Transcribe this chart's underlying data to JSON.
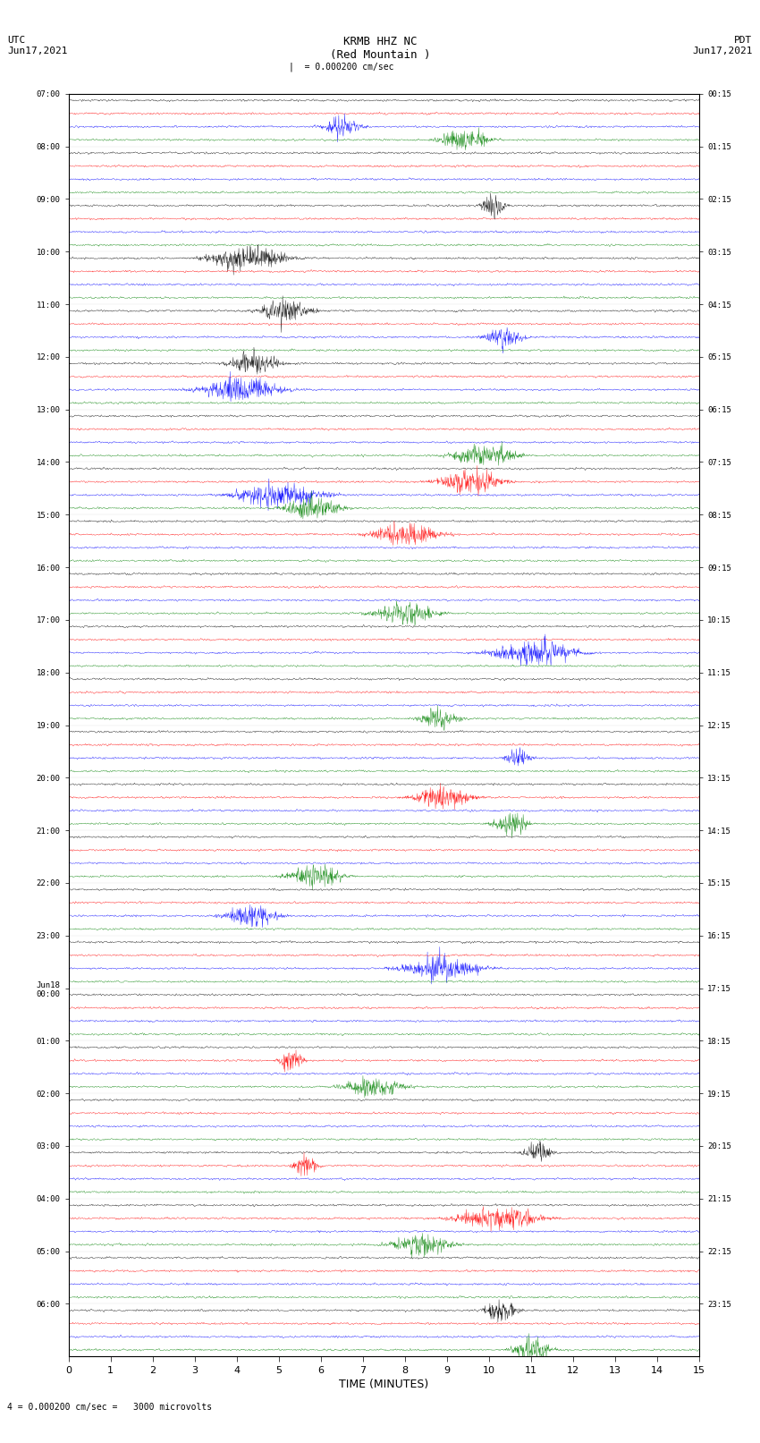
{
  "title_center": "KRMB HHZ NC\n(Red Mountain )",
  "title_left": "UTC\nJun17,2021",
  "title_right": "PDT\nJun17,2021",
  "scale_label": "|  = 0.000200 cm/sec",
  "scale_label2": "= 0.000200 cm/sec =   3000 microvolts",
  "xlabel": "TIME (MINUTES)",
  "left_times": [
    "07:00",
    "08:00",
    "09:00",
    "10:00",
    "11:00",
    "12:00",
    "13:00",
    "14:00",
    "15:00",
    "16:00",
    "17:00",
    "18:00",
    "19:00",
    "20:00",
    "21:00",
    "22:00",
    "23:00",
    "Jun18\n00:00",
    "01:00",
    "02:00",
    "03:00",
    "04:00",
    "05:00",
    "06:00"
  ],
  "right_times": [
    "00:15",
    "01:15",
    "02:15",
    "03:15",
    "04:15",
    "05:15",
    "06:15",
    "07:15",
    "08:15",
    "09:15",
    "10:15",
    "11:15",
    "12:15",
    "13:15",
    "14:15",
    "15:15",
    "16:15",
    "17:15",
    "18:15",
    "19:15",
    "20:15",
    "21:15",
    "22:15",
    "23:15"
  ],
  "num_rows": 24,
  "traces_per_row": 4,
  "colors": [
    "black",
    "red",
    "blue",
    "green"
  ],
  "bg_color": "white",
  "trace_amplitude": 0.35,
  "x_min": 0,
  "x_max": 15,
  "x_ticks": [
    0,
    1,
    2,
    3,
    4,
    5,
    6,
    7,
    8,
    9,
    10,
    11,
    12,
    13,
    14,
    15
  ],
  "fig_width": 8.5,
  "fig_height": 16.13,
  "dpi": 100,
  "noise_seed": 42
}
